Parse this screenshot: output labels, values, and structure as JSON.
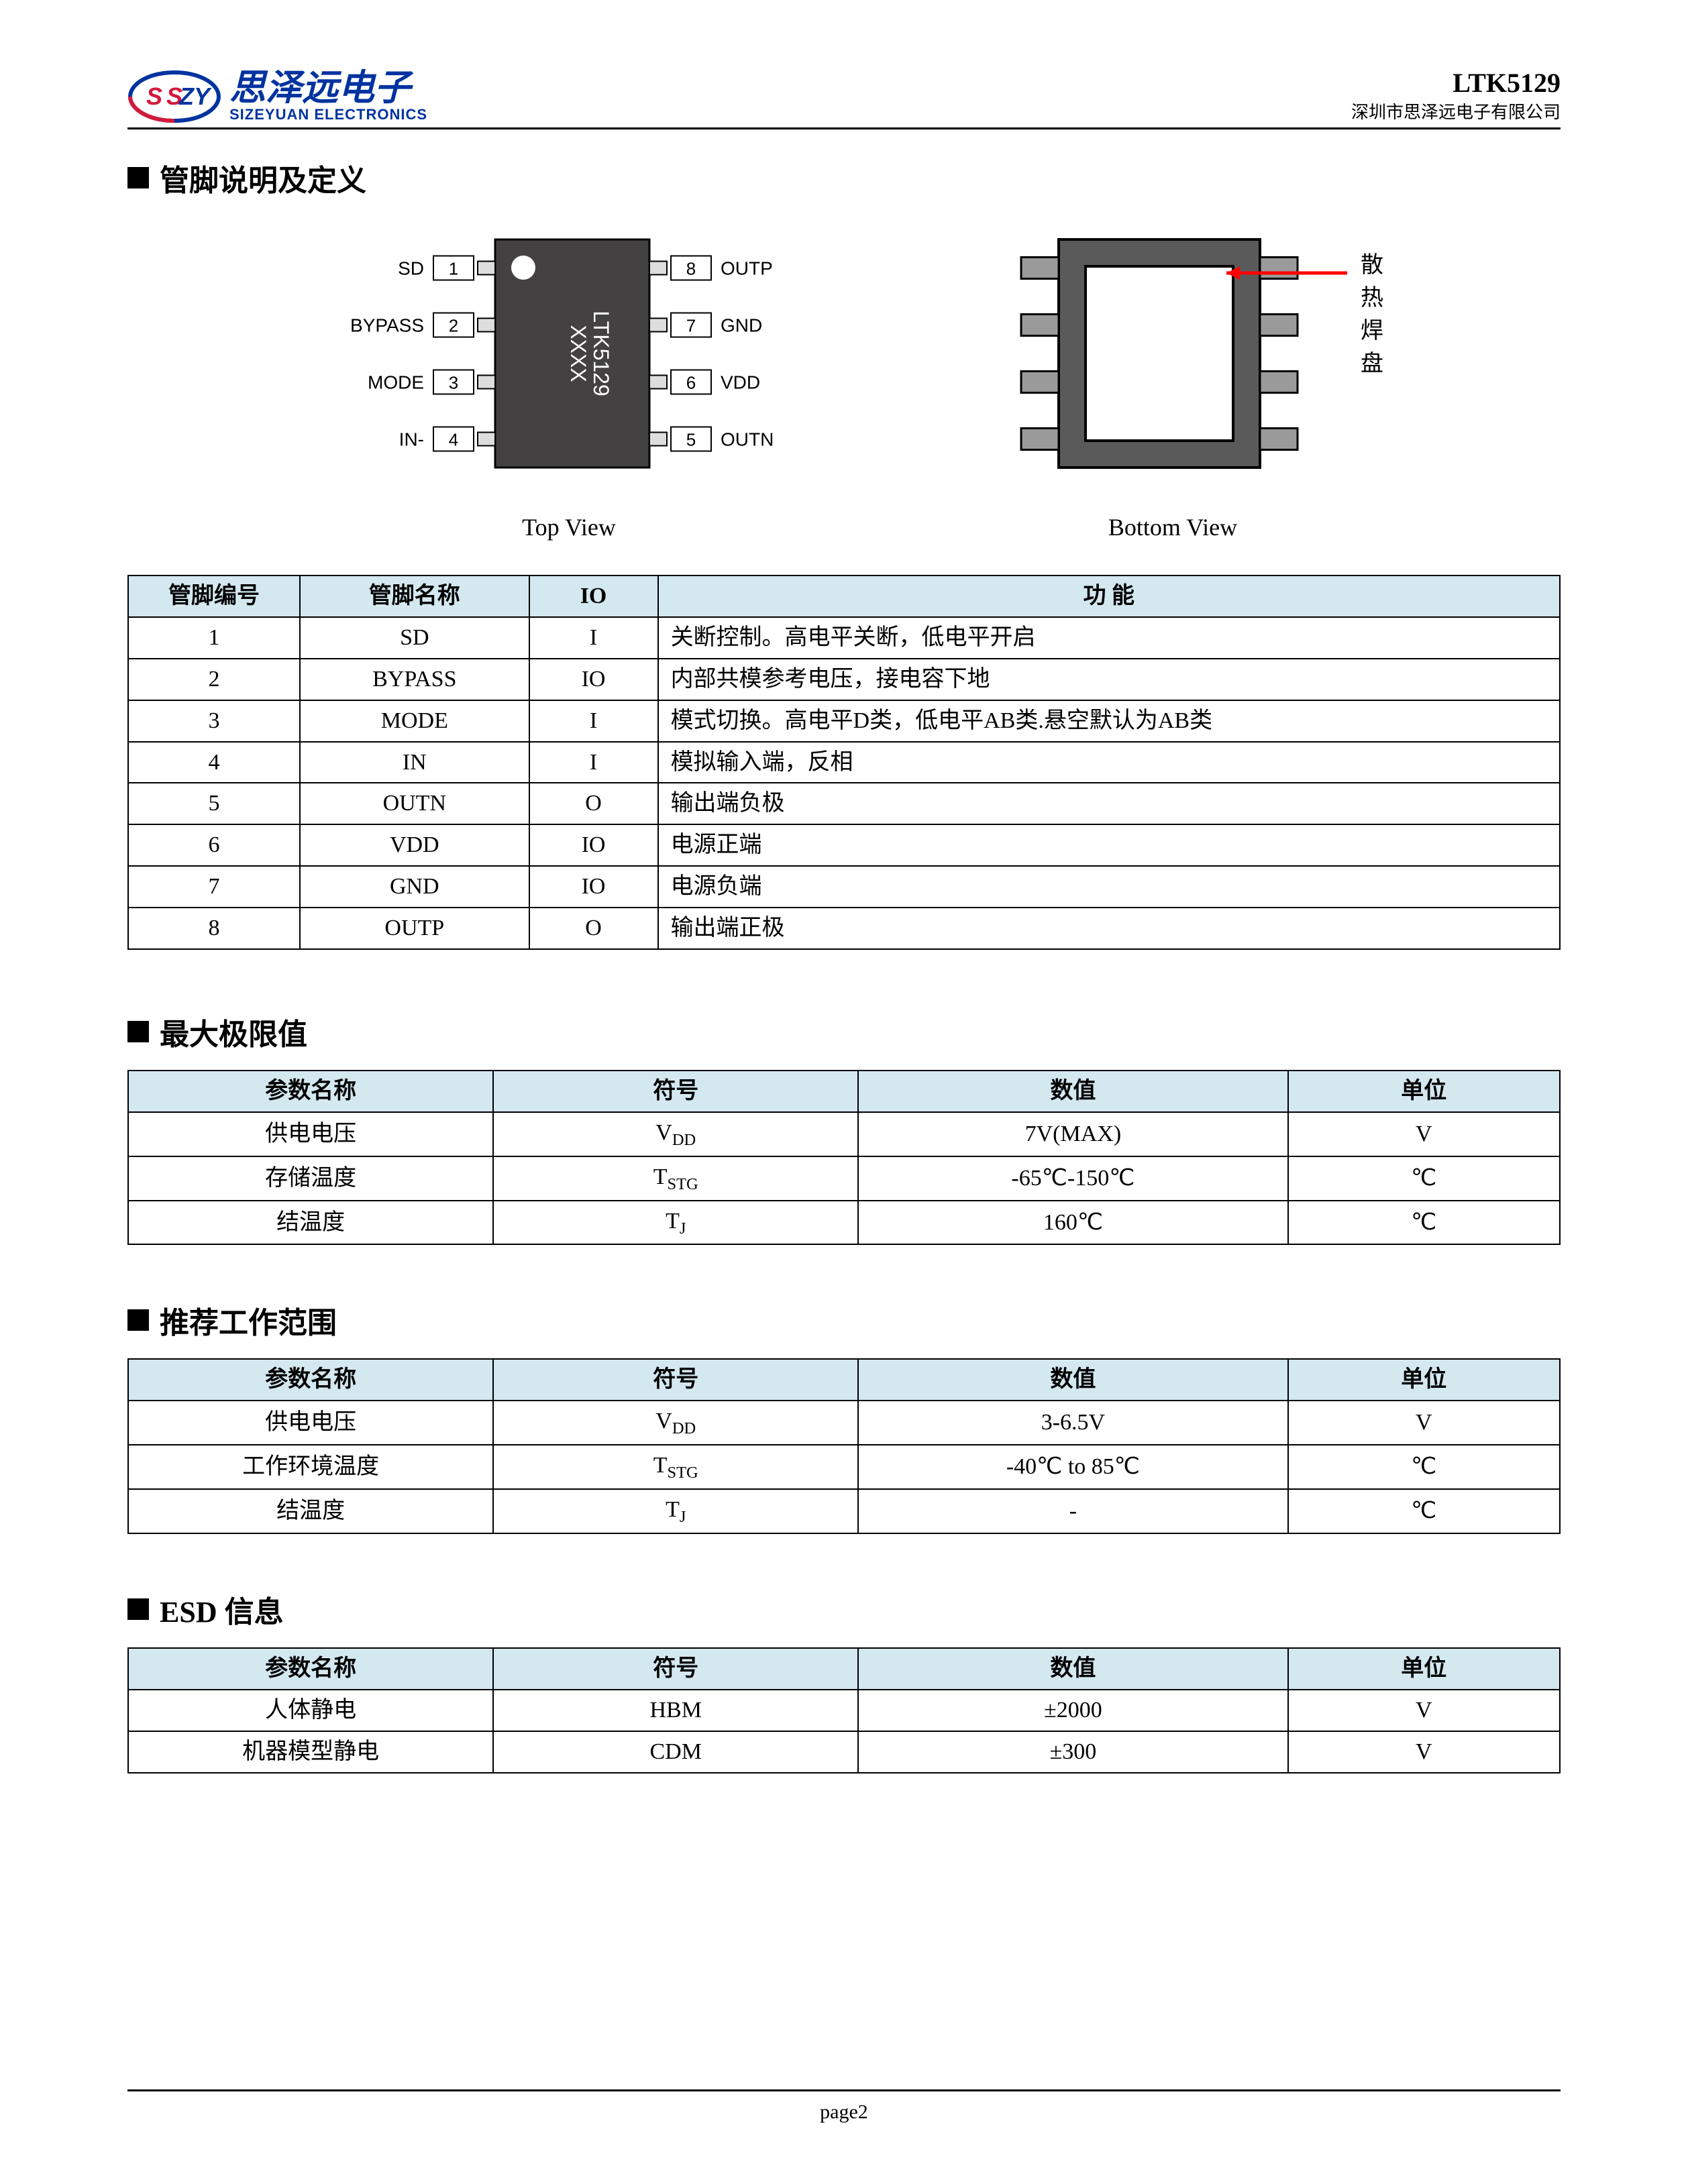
{
  "header": {
    "logo_cn": "思泽远电子",
    "logo_en": "SIZEYUAN ELECTRONICS",
    "logo_badge": "SZY",
    "logo_colors": {
      "blue": "#0033a0",
      "red": "#d4193b",
      "white": "#ffffff"
    },
    "part_number": "LTK5129",
    "company_cn": "深圳市思泽远电子有限公司"
  },
  "section1": {
    "title": "管脚说明及定义",
    "top_view": {
      "caption": "Top View",
      "chip_body_color": "#434142",
      "chip_label_line1": "LTK5129",
      "chip_label_line2": "XXXX",
      "dot_color": "#ffffff",
      "pin_count": 8,
      "left_pins": [
        {
          "num": "1",
          "label": "SD"
        },
        {
          "num": "2",
          "label": "BYPASS"
        },
        {
          "num": "3",
          "label": "MODE"
        },
        {
          "num": "4",
          "label": "IN-"
        }
      ],
      "right_pins": [
        {
          "num": "8",
          "label": "OUTP"
        },
        {
          "num": "7",
          "label": "GND"
        },
        {
          "num": "6",
          "label": "VDD"
        },
        {
          "num": "5",
          "label": "OUTN"
        }
      ],
      "pin_label_color": "#000000",
      "pin_box_fill": "#ffffff",
      "pin_box_stroke": "#000000"
    },
    "bottom_view": {
      "caption": "Bottom View",
      "outer_fill": "#5a5a5a",
      "outer_stroke": "#000000",
      "pad_fill": "#ffffff",
      "pad_stroke": "#000000",
      "pin_fill": "#9a9a9a",
      "callout_label": "散热焊盘",
      "callout_color": "#ff0000",
      "pin_count": 8
    },
    "pin_table": {
      "headers": [
        "管脚编号",
        "管脚名称",
        "IO",
        "功  能"
      ],
      "col_widths_pct": [
        12,
        16,
        9,
        63
      ],
      "rows": [
        [
          "1",
          "SD",
          "I",
          "关断控制。高电平关断，低电平开启"
        ],
        [
          "2",
          "BYPASS",
          "IO",
          "内部共模参考电压，接电容下地"
        ],
        [
          "3",
          "MODE",
          "I",
          "模式切换。高电平D类，低电平AB类.悬空默认为AB类"
        ],
        [
          "4",
          "IN",
          "I",
          "模拟输入端，反相"
        ],
        [
          "5",
          "OUTN",
          "O",
          "输出端负极"
        ],
        [
          "6",
          "VDD",
          "IO",
          "电源正端"
        ],
        [
          "7",
          "GND",
          "IO",
          "电源负端"
        ],
        [
          "8",
          "OUTP",
          "O",
          "输出端正极"
        ]
      ]
    }
  },
  "section2": {
    "title": "最大极限值",
    "table": {
      "headers": [
        "参数名称",
        "符号",
        "数值",
        "单位"
      ],
      "col_widths_pct": [
        25.5,
        25.5,
        30,
        19
      ],
      "rows": [
        {
          "name": "供电电压",
          "sym_main": "V",
          "sym_sub": "DD",
          "value": "7V(MAX)",
          "unit": "V"
        },
        {
          "name": "存储温度",
          "sym_main": "T",
          "sym_sub": "STG",
          "value": "-65℃-150℃",
          "unit": "℃"
        },
        {
          "name": "结温度",
          "sym_main": "T",
          "sym_sub": "J",
          "value": "160℃",
          "unit": "℃"
        }
      ]
    }
  },
  "section3": {
    "title": "推荐工作范围",
    "table": {
      "headers": [
        "参数名称",
        "符号",
        "数值",
        "单位"
      ],
      "col_widths_pct": [
        25.5,
        25.5,
        30,
        19
      ],
      "rows": [
        {
          "name": "供电电压",
          "sym_main": "V",
          "sym_sub": "DD",
          "value": "3-6.5V",
          "unit": "V"
        },
        {
          "name": "工作环境温度",
          "sym_main": "T",
          "sym_sub": "STG",
          "value": "-40℃ to 85℃",
          "unit": "℃"
        },
        {
          "name": "结温度",
          "sym_main": "T",
          "sym_sub": "J",
          "value": "-",
          "unit": "℃"
        }
      ]
    }
  },
  "section4": {
    "title": "ESD 信息",
    "table": {
      "headers": [
        "参数名称",
        "符号",
        "数值",
        "单位"
      ],
      "col_widths_pct": [
        25.5,
        25.5,
        30,
        19
      ],
      "rows": [
        {
          "name": "人体静电",
          "sym_main": "HBM",
          "sym_sub": "",
          "value": "±2000",
          "unit": "V"
        },
        {
          "name": "机器模型静电",
          "sym_main": "CDM",
          "sym_sub": "",
          "value": "±300",
          "unit": "V"
        }
      ]
    }
  },
  "footer": {
    "text": "page2"
  },
  "palette": {
    "table_header_bg": "#d4e8f0",
    "border": "#000000",
    "text": "#000000"
  }
}
